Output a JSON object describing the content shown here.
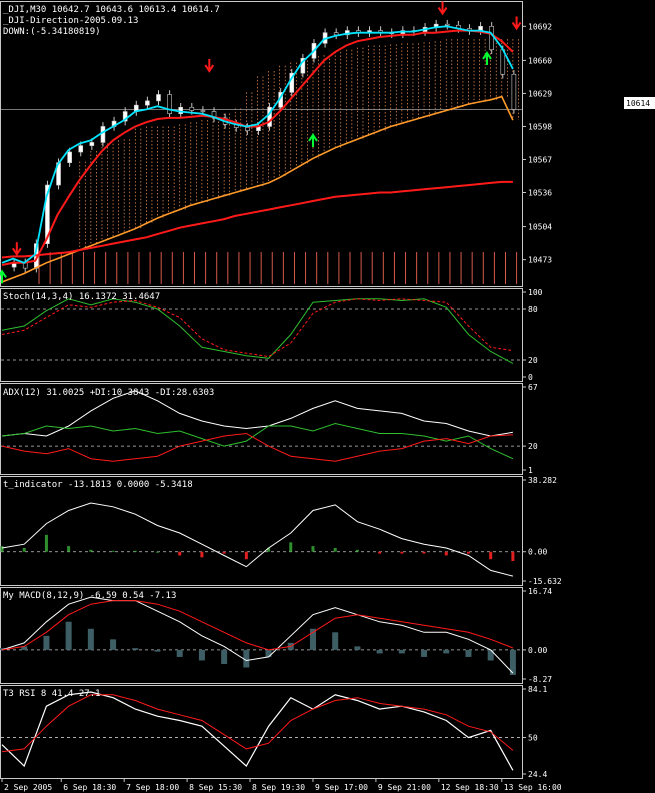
{
  "colors": {
    "bg": "#000000",
    "frame": "#c8c8c8",
    "grid": "#c8c8c8",
    "text": "#ffffff",
    "candle_up": "#ffffff",
    "candle_down": "#000000",
    "wick": "#c8c8c8",
    "cyan": "#00e5ff",
    "red": "#ff1a1a",
    "orange": "#ff9a2a",
    "magenta": "#c040d0",
    "green": "#2fbf2f",
    "yellow": "#d8c060",
    "cloud": "#ff9a5a",
    "hist_green": "#2f8f2f",
    "hist_red": "#e02020",
    "macd_hist": "#3e5e66",
    "up_arrow": "#00ff33",
    "down_arrow": "#ff1a1a",
    "volume": "#d85a4a"
  },
  "panels": {
    "main": {
      "title1": "_DJI,M30  10642.7 10643.6 10613.4 10614.7",
      "title2": "_DJI-Direction-2005.09.13",
      "title3": "DOWN:(-5.34180819)",
      "price_box": "10614",
      "price_line": 10614,
      "ylim": [
        10452,
        10712
      ],
      "ticks": [
        "10692",
        "10660",
        "10629",
        "10598",
        "10567",
        "10536",
        "10504",
        "10473"
      ]
    },
    "stoch": {
      "title": "Stoch(14,3,4) 16.1372 31.4647",
      "ylim": [
        0,
        100
      ],
      "ticks": [
        "100",
        "80",
        "20",
        "0"
      ],
      "levels": [
        80,
        20
      ]
    },
    "adx": {
      "title": "ADX(12) 31.0025 +DI:10.3843 -DI:28.6303",
      "ylim": [
        1,
        67
      ],
      "ticks": [
        "67",
        "20",
        "1"
      ],
      "levels": [
        20
      ]
    },
    "tind": {
      "title": "t_indicator -13.1813 0.0000 -5.3418",
      "ylim": [
        -15.632,
        38.282
      ],
      "ticks": [
        "38.282",
        "0.00",
        "-15.632"
      ],
      "levels": [
        0
      ]
    },
    "macd": {
      "title": "My MACD(8,12,9) -6.59 0.54 -7.13",
      "ylim": [
        -8.27,
        16.74
      ],
      "ticks": [
        "16.74",
        "0.00",
        "-8.27"
      ],
      "levels": [
        0
      ]
    },
    "rsi": {
      "title": "T3 RSI 8 41.4 27.1",
      "ylim": [
        24.4,
        84.1
      ],
      "ticks": [
        "84.1",
        "50",
        "24.4"
      ],
      "levels": [
        50
      ]
    }
  },
  "x_axis": {
    "labels": [
      "2 Sep 2005",
      "6 Sep 18:30",
      "7 Sep 18:00",
      "8 Sep 15:30",
      "8 Sep 19:30",
      "9 Sep 17:00",
      "9 Sep 21:00",
      "12 Sep 18:30",
      "13 Sep 16:00"
    ],
    "label_bars": [
      0,
      16,
      33,
      50,
      67,
      84,
      101,
      118,
      135
    ]
  },
  "chart_data": [
    {
      "type": "line",
      "panel": "main",
      "description": "Dow Jones 30-min candlestick chart with moving averages and cloud",
      "x": [
        0,
        3,
        6,
        9,
        12,
        15,
        18,
        21,
        24,
        27,
        30,
        33,
        36,
        39,
        42,
        45,
        48,
        51,
        54,
        57,
        60,
        63,
        66,
        69,
        72,
        75,
        78,
        81,
        84,
        87,
        90,
        93,
        96,
        99,
        102,
        105,
        108,
        111,
        114,
        117,
        120,
        123,
        126,
        129,
        132,
        135,
        138
      ],
      "series": [
        {
          "name": "close",
          "values": [
            10466,
            10470,
            10465,
            10488,
            10543,
            10564,
            10574,
            10580,
            10583,
            10598,
            10603,
            10612,
            10618,
            10622,
            10628,
            10610,
            10616,
            10613,
            10612,
            10606,
            10600,
            10597,
            10594,
            10598,
            10616,
            10630,
            10648,
            10662,
            10676,
            10686,
            10684,
            10688,
            10686,
            10688,
            10686,
            10685,
            10688,
            10687,
            10691,
            10694,
            10693,
            10690,
            10688,
            10692,
            10670,
            10647,
            10614
          ]
        },
        {
          "name": "",
          "values": [
            10470,
            10474,
            10470,
            10478,
            10532,
            10562,
            10576,
            10582,
            10585,
            10592,
            10598,
            10604,
            10612,
            10614,
            10617,
            10614,
            10612,
            10611,
            10610,
            10607,
            10603,
            10600,
            10598,
            10600,
            10609,
            10624,
            10642,
            10658,
            10668,
            10680,
            10683,
            10685,
            10686,
            10686,
            10686,
            10686,
            10687,
            10687,
            10689,
            10691,
            10692,
            10690,
            10688,
            10688,
            10686,
            10672,
            10652
          ]
        },
        {
          "name": "",
          "values": [
            10468,
            10470,
            10470,
            10472,
            10492,
            10515,
            10532,
            10548,
            10562,
            10575,
            10585,
            10592,
            10598,
            10602,
            10605,
            10606,
            10606,
            10607,
            10608,
            10607,
            10605,
            10602,
            10598,
            10598,
            10602,
            10612,
            10624,
            10636,
            10648,
            10660,
            10668,
            10674,
            10678,
            10680,
            10682,
            10683,
            10684,
            10684,
            10686,
            10686,
            10687,
            10688,
            10688,
            10687,
            10685,
            10678,
            10668
          ]
        },
        {
          "name": "",
          "values": [
            10475,
            10476,
            10476,
            10477,
            10478,
            10479,
            10480,
            10482,
            10484,
            10486,
            10488,
            10490,
            10492,
            10494,
            10497,
            10500,
            10503,
            10505,
            10507,
            10509,
            10511,
            10514,
            10516,
            10518,
            10520,
            10522,
            10524,
            10526,
            10528,
            10530,
            10532,
            10533,
            10534,
            10535,
            10536,
            10536,
            10537,
            10538,
            10539,
            10540,
            10541,
            10542,
            10543,
            10544,
            10545,
            10546,
            10546
          ]
        },
        {
          "name": "",
          "values": [
            10452,
            10456,
            10460,
            10465,
            10470,
            10474,
            10478,
            10482,
            10486,
            10490,
            10494,
            10498,
            10502,
            10507,
            10512,
            10516,
            10520,
            10524,
            10527,
            10530,
            10533,
            10536,
            10539,
            10542,
            10545,
            10550,
            10556,
            10562,
            10568,
            10573,
            10578,
            10582,
            10586,
            10590,
            10594,
            10598,
            10601,
            10604,
            10607,
            10610,
            10613,
            10616,
            10619,
            10621,
            10623,
            10626,
            10604
          ]
        },
        {
          "name": "",
          "values": [
            null,
            null,
            null,
            null,
            null,
            null,
            null,
            10565,
            10575,
            10582,
            10585,
            10586,
            10596,
            10598,
            10598,
            10598,
            10600,
            10602,
            10604,
            10606,
            10610,
            10615,
            10630,
            10645,
            10650,
            10655,
            10658,
            10660,
            10664,
            10665,
            10668,
            10670,
            10672,
            10674,
            10674,
            10675,
            10676,
            10676,
            10677,
            10678,
            10680,
            10680,
            10680,
            10680,
            10680,
            10680,
            10680
          ]
        }
      ],
      "signals": {
        "down": [
          [
            4,
            10478
          ],
          [
            56,
            10650
          ],
          [
            119,
            10704
          ],
          [
            139,
            10690
          ]
        ],
        "up": [
          [
            0,
            10462
          ],
          [
            84,
            10590
          ],
          [
            131,
            10667
          ]
        ]
      }
    },
    {
      "type": "line",
      "panel": "stoch",
      "x": [
        0,
        6,
        12,
        18,
        24,
        30,
        36,
        42,
        48,
        54,
        60,
        66,
        72,
        78,
        84,
        90,
        96,
        102,
        108,
        114,
        120,
        126,
        132,
        138
      ],
      "series": [
        {
          "name": "main",
          "values": [
            55,
            60,
            78,
            92,
            85,
            92,
            88,
            80,
            60,
            35,
            30,
            25,
            22,
            50,
            88,
            90,
            92,
            92,
            90,
            92,
            82,
            50,
            30,
            16
          ]
        },
        {
          "name": "signal",
          "values": [
            50,
            55,
            70,
            85,
            82,
            88,
            90,
            82,
            70,
            45,
            32,
            28,
            24,
            40,
            75,
            88,
            92,
            90,
            92,
            90,
            88,
            60,
            35,
            31
          ]
        }
      ]
    },
    {
      "type": "line",
      "panel": "adx",
      "x": [
        0,
        6,
        12,
        18,
        24,
        30,
        36,
        42,
        48,
        54,
        60,
        66,
        72,
        78,
        84,
        90,
        96,
        102,
        108,
        114,
        120,
        126,
        132,
        138
      ],
      "series": [
        {
          "name": "ADX",
          "values": [
            28,
            30,
            28,
            36,
            48,
            58,
            64,
            56,
            46,
            40,
            36,
            34,
            36,
            42,
            50,
            56,
            50,
            48,
            46,
            40,
            38,
            32,
            28,
            31
          ]
        },
        {
          "name": "+DI",
          "values": [
            28,
            30,
            36,
            34,
            36,
            32,
            34,
            30,
            32,
            26,
            20,
            24,
            36,
            36,
            32,
            38,
            34,
            30,
            30,
            28,
            24,
            28,
            18,
            10
          ]
        },
        {
          "name": "-DI",
          "values": [
            20,
            16,
            14,
            18,
            10,
            8,
            10,
            12,
            20,
            24,
            28,
            30,
            20,
            12,
            10,
            8,
            12,
            16,
            18,
            24,
            26,
            22,
            28,
            29
          ]
        }
      ]
    },
    {
      "type": "bar",
      "panel": "tind",
      "x": [
        0,
        6,
        12,
        18,
        24,
        30,
        36,
        42,
        48,
        54,
        60,
        66,
        72,
        78,
        84,
        90,
        96,
        102,
        108,
        114,
        120,
        126,
        132,
        138
      ],
      "series": [
        {
          "name": "t_indicator",
          "values": [
            2,
            4,
            15,
            22,
            26,
            24,
            20,
            14,
            10,
            4,
            -2,
            -8,
            2,
            10,
            22,
            25,
            16,
            12,
            7,
            4,
            2,
            -2,
            -10,
            -13
          ]
        },
        {
          "name": "hist",
          "values": [
            3,
            2,
            9,
            3,
            1,
            0.5,
            0.5,
            0,
            -2,
            -3,
            -1,
            -4,
            2,
            5,
            3,
            2,
            1,
            -1,
            -1,
            -1,
            -2,
            -1,
            -4,
            -5
          ]
        }
      ]
    },
    {
      "type": "bar",
      "panel": "macd",
      "x": [
        0,
        6,
        12,
        18,
        24,
        30,
        36,
        42,
        48,
        54,
        60,
        66,
        72,
        78,
        84,
        90,
        96,
        102,
        108,
        114,
        120,
        126,
        132,
        138
      ],
      "series": [
        {
          "name": "MACD",
          "values": [
            0,
            2,
            8,
            13,
            15,
            14,
            14,
            11,
            8,
            4,
            1,
            -3,
            -2,
            4,
            10,
            12,
            10,
            8,
            7,
            5,
            5,
            3,
            0,
            -6.59
          ]
        },
        {
          "name": "signal",
          "values": [
            0,
            1,
            5,
            10,
            13,
            14,
            14,
            13,
            11,
            8,
            5,
            2,
            0,
            1,
            5,
            9,
            10,
            9,
            8,
            7,
            6,
            5,
            3,
            0.54
          ]
        },
        {
          "name": "hist",
          "values": [
            0.5,
            1,
            4,
            8,
            6,
            3,
            0.5,
            -0.5,
            -2,
            -3,
            -4,
            -5,
            -2,
            2,
            6,
            5,
            1,
            -1,
            -1,
            -2,
            -1,
            -2,
            -3,
            -7.13
          ]
        }
      ]
    },
    {
      "type": "line",
      "panel": "rsi",
      "x": [
        0,
        6,
        12,
        18,
        24,
        30,
        36,
        42,
        48,
        54,
        60,
        66,
        72,
        78,
        84,
        90,
        96,
        102,
        108,
        114,
        120,
        126,
        132,
        138
      ],
      "series": [
        {
          "name": "RSI",
          "values": [
            45,
            30,
            72,
            80,
            82,
            78,
            70,
            65,
            62,
            58,
            44,
            30,
            58,
            78,
            70,
            80,
            76,
            70,
            72,
            68,
            62,
            50,
            55,
            27
          ]
        },
        {
          "name": "signal",
          "values": [
            40,
            42,
            58,
            72,
            80,
            80,
            76,
            70,
            66,
            62,
            52,
            42,
            46,
            62,
            70,
            76,
            78,
            74,
            72,
            70,
            66,
            58,
            54,
            41
          ]
        }
      ]
    }
  ]
}
